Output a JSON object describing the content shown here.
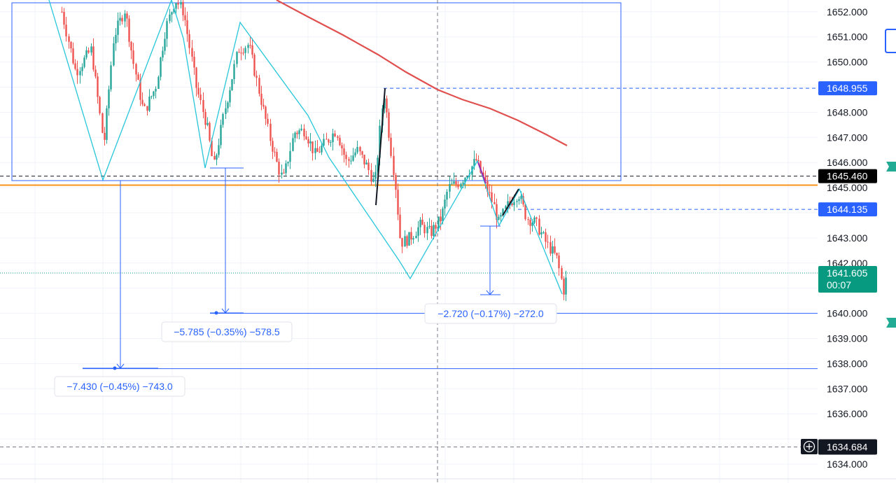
{
  "chart_data": {
    "type": "candlestick",
    "price_axis": {
      "ticks": [
        "1652.000",
        "1651.000",
        "1650.000",
        "1648.000",
        "1647.000",
        "1646.000",
        "1645.000",
        "1643.000",
        "1642.000",
        "1640.000",
        "1639.000",
        "1638.000",
        "1637.000",
        "1636.000",
        "1634.000"
      ],
      "tick_values": [
        1652,
        1651,
        1650,
        1648,
        1647,
        1646,
        1645,
        1643,
        1642,
        1640,
        1639,
        1638,
        1637,
        1636,
        1634
      ],
      "range": [
        1633.95,
        1652.35
      ]
    },
    "price_labels": [
      {
        "text": "1648.955",
        "value": 1648.955,
        "color": "#2962ff"
      },
      {
        "text": "1645.460",
        "value": 1645.46,
        "color": "#000000"
      },
      {
        "text": "1644.135",
        "value": 1644.135,
        "color": "#2962ff"
      },
      {
        "text": "1634.684",
        "value": 1634.684,
        "color": "#131722"
      }
    ],
    "last_price": {
      "text": "1641.605",
      "timer": "00:07",
      "value": 1641.605,
      "color": "#089981"
    },
    "horizontal_lines": [
      {
        "value": 1645.1,
        "color": "#f7931a"
      },
      {
        "value": 1640.0,
        "color": "#2962ff"
      },
      {
        "value": 1637.8,
        "color": "#2962ff"
      }
    ],
    "measurements": [
      {
        "label": "−7.430 (−0.45%) −743.0"
      },
      {
        "label": "−5.785 (−0.35%) −578.5"
      },
      {
        "label": "−2.720 (−0.17%) −272.0"
      }
    ],
    "moving_average_color": "#e0504f",
    "zigzag_color": "#26c6da",
    "up_color": "#26a69a",
    "down_color": "#ef5350",
    "grid": true
  },
  "colors": {
    "rect_border": "#2962ff",
    "crosshair": "#787b86",
    "tab_green": "#22ab94",
    "tab_blue": "#2962ff"
  }
}
